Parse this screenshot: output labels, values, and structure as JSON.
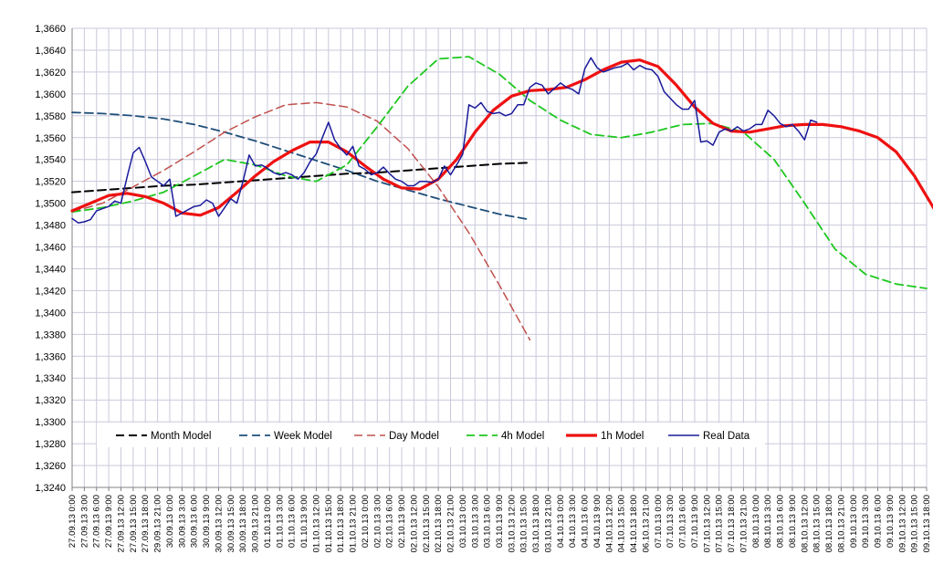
{
  "chart_data": {
    "type": "line",
    "title": "",
    "xlabel": "",
    "ylabel": "",
    "ylim": [
      1.324,
      1.366
    ],
    "y_ticks": [
      "1,3240",
      "1,3260",
      "1,3280",
      "1,3300",
      "1,3320",
      "1,3340",
      "1,3360",
      "1,3380",
      "1,3400",
      "1,3420",
      "1,3440",
      "1,3460",
      "1,3480",
      "1,3500",
      "1,3520",
      "1,3540",
      "1,3560",
      "1,3580",
      "1,3600",
      "1,3620",
      "1,3640",
      "1,3660"
    ],
    "x_ticks": [
      "27.09.13 0:00",
      "27.09.13 3:00",
      "27.09.13 6:00",
      "27.09.13 9:00",
      "27.09.13 12:00",
      "27.09.13 15:00",
      "27.09.13 18:00",
      "29.09.13 21:00",
      "30.09.13 0:00",
      "30.09.13 3:00",
      "30.09.13 6:00",
      "30.09.13 9:00",
      "30.09.13 12:00",
      "30.09.13 15:00",
      "30.09.13 18:00",
      "30.09.13 21:00",
      "01.10.13 0:00",
      "01.10.13 3:00",
      "01.10.13 6:00",
      "01.10.13 9:00",
      "01.10.13 12:00",
      "01.10.13 15:00",
      "01.10.13 18:00",
      "01.10.13 21:00",
      "02.10.13 0:00",
      "02.10.13 3:00",
      "02.10.13 6:00",
      "02.10.13 9:00",
      "02.10.13 12:00",
      "02.10.13 15:00",
      "02.10.13 18:00",
      "02.10.13 21:00",
      "03.10.13 0:00",
      "03.10.13 3:00",
      "03.10.13 6:00",
      "03.10.13 9:00",
      "03.10.13 12:00",
      "03.10.13 15:00",
      "03.10.13 18:00",
      "03.10.13 21:00",
      "04.10.13 0:00",
      "04.10.13 3:00",
      "04.10.13 6:00",
      "04.10.13 9:00",
      "04.10.13 12:00",
      "04.10.13 15:00",
      "04.10.13 18:00",
      "06.10.13 21:00",
      "07.10.13 0:00",
      "07.10.13 3:00",
      "07.10.13 6:00",
      "07.10.13 9:00",
      "07.10.13 12:00",
      "07.10.13 15:00",
      "07.10.13 18:00",
      "07.10.13 21:00",
      "08.10.13 0:00",
      "08.10.13 3:00",
      "08.10.13 6:00",
      "08.10.13 9:00",
      "08.10.13 12:00",
      "08.10.13 15:00",
      "08.10.13 18:00",
      "08.10.13 21:00",
      "09.10.13 0:00",
      "09.10.13 3:00",
      "09.10.13 6:00",
      "09.10.13 9:00",
      "09.10.13 12:00",
      "09.10.13 15:00",
      "09.10.13 18:00"
    ],
    "grid": true,
    "legend_position": "bottom",
    "series": [
      {
        "name": "Month Model",
        "color": "#000000",
        "style": "dashed-long",
        "width": 2,
        "points": [
          [
            0,
            1.351
          ],
          [
            5,
            1.3512
          ],
          [
            10,
            1.3514
          ],
          [
            15,
            1.3516
          ],
          [
            20,
            1.3517
          ],
          [
            25,
            1.3519
          ],
          [
            30,
            1.3521
          ],
          [
            35,
            1.3523
          ],
          [
            40,
            1.3525
          ],
          [
            45,
            1.3527
          ],
          [
            50,
            1.3528
          ],
          [
            55,
            1.353
          ],
          [
            60,
            1.3532
          ],
          [
            65,
            1.3534
          ],
          [
            70,
            1.3536
          ],
          [
            75,
            1.3537
          ]
        ]
      },
      {
        "name": "Week Model",
        "color": "#1f4e79",
        "style": "dashed-long",
        "width": 1.8,
        "points": [
          [
            0,
            1.3583
          ],
          [
            5,
            1.3582
          ],
          [
            10,
            1.358
          ],
          [
            15,
            1.3577
          ],
          [
            20,
            1.3572
          ],
          [
            25,
            1.3565
          ],
          [
            30,
            1.3557
          ],
          [
            35,
            1.3548
          ],
          [
            40,
            1.3539
          ],
          [
            45,
            1.353
          ],
          [
            50,
            1.352
          ],
          [
            55,
            1.3512
          ],
          [
            60,
            1.3504
          ],
          [
            65,
            1.3497
          ],
          [
            70,
            1.349
          ],
          [
            75,
            1.3485
          ]
        ]
      },
      {
        "name": "Day Model",
        "color": "#c0504d",
        "style": "dashed",
        "width": 1.5,
        "points": [
          [
            0,
            1.3492
          ],
          [
            5,
            1.35
          ],
          [
            10,
            1.3515
          ],
          [
            15,
            1.353
          ],
          [
            20,
            1.3547
          ],
          [
            25,
            1.3565
          ],
          [
            30,
            1.3579
          ],
          [
            35,
            1.359
          ],
          [
            40,
            1.3592
          ],
          [
            45,
            1.3588
          ],
          [
            50,
            1.3575
          ],
          [
            55,
            1.355
          ],
          [
            60,
            1.3515
          ],
          [
            65,
            1.3473
          ],
          [
            70,
            1.3425
          ],
          [
            75,
            1.3375
          ]
        ]
      },
      {
        "name": "4h Model",
        "color": "#1fc71f",
        "style": "dashed",
        "width": 1.8,
        "points": [
          [
            0,
            1.3492
          ],
          [
            5,
            1.3496
          ],
          [
            10,
            1.3502
          ],
          [
            15,
            1.351
          ],
          [
            20,
            1.3525
          ],
          [
            25,
            1.354
          ],
          [
            30,
            1.3535
          ],
          [
            35,
            1.3525
          ],
          [
            40,
            1.352
          ],
          [
            45,
            1.3535
          ],
          [
            50,
            1.357
          ],
          [
            55,
            1.3607
          ],
          [
            60,
            1.3632
          ],
          [
            65,
            1.3634
          ],
          [
            70,
            1.3618
          ],
          [
            75,
            1.3594
          ],
          [
            80,
            1.3576
          ],
          [
            85,
            1.3563
          ],
          [
            90,
            1.356
          ],
          [
            95,
            1.3565
          ],
          [
            100,
            1.3572
          ],
          [
            105,
            1.3573
          ],
          [
            110,
            1.3565
          ],
          [
            115,
            1.354
          ],
          [
            120,
            1.35
          ],
          [
            125,
            1.3458
          ],
          [
            130,
            1.3435
          ],
          [
            135,
            1.3426
          ],
          [
            140,
            1.3422
          ]
        ]
      },
      {
        "name": "1h Model",
        "color": "#ee1111",
        "style": "solid",
        "width": 3.2,
        "points": [
          [
            0,
            1.3493
          ],
          [
            3,
            1.35
          ],
          [
            6,
            1.3507
          ],
          [
            9,
            1.3509
          ],
          [
            12,
            1.3506
          ],
          [
            15,
            1.35
          ],
          [
            18,
            1.3491
          ],
          [
            21,
            1.3489
          ],
          [
            24,
            1.3496
          ],
          [
            27,
            1.351
          ],
          [
            30,
            1.3525
          ],
          [
            33,
            1.3538
          ],
          [
            36,
            1.3548
          ],
          [
            39,
            1.3556
          ],
          [
            42,
            1.3556
          ],
          [
            45,
            1.3547
          ],
          [
            48,
            1.3534
          ],
          [
            51,
            1.3522
          ],
          [
            54,
            1.3514
          ],
          [
            57,
            1.3513
          ],
          [
            60,
            1.3522
          ],
          [
            63,
            1.354
          ],
          [
            66,
            1.3565
          ],
          [
            69,
            1.3585
          ],
          [
            72,
            1.3598
          ],
          [
            75,
            1.3603
          ],
          [
            78,
            1.3604
          ],
          [
            81,
            1.3606
          ],
          [
            84,
            1.3613
          ],
          [
            87,
            1.3622
          ],
          [
            90,
            1.3629
          ],
          [
            93,
            1.3631
          ],
          [
            96,
            1.3625
          ],
          [
            99,
            1.3608
          ],
          [
            102,
            1.3588
          ],
          [
            105,
            1.3573
          ],
          [
            108,
            1.3566
          ],
          [
            111,
            1.3565
          ],
          [
            114,
            1.3568
          ],
          [
            117,
            1.3571
          ],
          [
            120,
            1.3572
          ],
          [
            123,
            1.3572
          ],
          [
            126,
            1.357
          ],
          [
            129,
            1.3566
          ],
          [
            132,
            1.356
          ],
          [
            135,
            1.3547
          ],
          [
            138,
            1.3525
          ],
          [
            141,
            1.3497
          ],
          [
            144,
            1.3469
          ],
          [
            147,
            1.3456
          ],
          [
            150,
            1.3447
          ],
          [
            152,
            1.3445
          ]
        ]
      },
      {
        "name": "Real Data",
        "color": "#1a1a9a",
        "style": "solid",
        "width": 1.5,
        "points": [
          [
            0,
            1.3486
          ],
          [
            1,
            1.3482
          ],
          [
            2,
            1.3483
          ],
          [
            3,
            1.3485
          ],
          [
            4,
            1.3493
          ],
          [
            5,
            1.3495
          ],
          [
            6,
            1.3497
          ],
          [
            7,
            1.3502
          ],
          [
            8,
            1.35
          ],
          [
            9,
            1.3524
          ],
          [
            10,
            1.3546
          ],
          [
            11,
            1.3551
          ],
          [
            12,
            1.3538
          ],
          [
            13,
            1.3524
          ],
          [
            14,
            1.352
          ],
          [
            15,
            1.3516
          ],
          [
            16,
            1.3522
          ],
          [
            17,
            1.3488
          ],
          [
            18,
            1.3491
          ],
          [
            19,
            1.3494
          ],
          [
            20,
            1.3497
          ],
          [
            21,
            1.3498
          ],
          [
            22,
            1.3503
          ],
          [
            23,
            1.35
          ],
          [
            24,
            1.3488
          ],
          [
            25,
            1.3496
          ],
          [
            26,
            1.3504
          ],
          [
            27,
            1.35
          ],
          [
            28,
            1.352
          ],
          [
            29,
            1.3544
          ],
          [
            30,
            1.3534
          ],
          [
            31,
            1.3535
          ],
          [
            32,
            1.3532
          ],
          [
            33,
            1.3528
          ],
          [
            34,
            1.3526
          ],
          [
            35,
            1.3528
          ],
          [
            36,
            1.3526
          ],
          [
            37,
            1.3522
          ],
          [
            38,
            1.3528
          ],
          [
            39,
            1.3538
          ],
          [
            40,
            1.3545
          ],
          [
            41,
            1.356
          ],
          [
            42,
            1.3574
          ],
          [
            43,
            1.3558
          ],
          [
            44,
            1.355
          ],
          [
            45,
            1.3544
          ],
          [
            46,
            1.3552
          ],
          [
            47,
            1.3534
          ],
          [
            48,
            1.3531
          ],
          [
            49,
            1.3526
          ],
          [
            50,
            1.3528
          ],
          [
            51,
            1.3533
          ],
          [
            52,
            1.3527
          ],
          [
            53,
            1.3522
          ],
          [
            54,
            1.352
          ],
          [
            55,
            1.3516
          ],
          [
            56,
            1.3516
          ],
          [
            57,
            1.352
          ],
          [
            58,
            1.352
          ],
          [
            59,
            1.3519
          ],
          [
            60,
            1.3522
          ],
          [
            61,
            1.3534
          ],
          [
            62,
            1.3526
          ],
          [
            63,
            1.3535
          ],
          [
            64,
            1.3545
          ],
          [
            65,
            1.359
          ],
          [
            66,
            1.3587
          ],
          [
            67,
            1.3592
          ],
          [
            68,
            1.3584
          ],
          [
            69,
            1.3582
          ],
          [
            70,
            1.3583
          ],
          [
            71,
            1.358
          ],
          [
            72,
            1.3582
          ],
          [
            73,
            1.359
          ],
          [
            74,
            1.359
          ],
          [
            75,
            1.3606
          ],
          [
            76,
            1.361
          ],
          [
            77,
            1.3608
          ],
          [
            78,
            1.36
          ],
          [
            79,
            1.3605
          ],
          [
            80,
            1.361
          ],
          [
            81,
            1.3606
          ],
          [
            82,
            1.3604
          ],
          [
            83,
            1.36
          ],
          [
            84,
            1.3623
          ],
          [
            85,
            1.3633
          ],
          [
            86,
            1.3624
          ],
          [
            87,
            1.362
          ],
          [
            88,
            1.3622
          ],
          [
            89,
            1.3624
          ],
          [
            90,
            1.3625
          ],
          [
            91,
            1.3628
          ],
          [
            92,
            1.3622
          ],
          [
            93,
            1.3626
          ],
          [
            94,
            1.3623
          ],
          [
            95,
            1.3622
          ],
          [
            96,
            1.3616
          ],
          [
            97,
            1.3602
          ],
          [
            98,
            1.3596
          ],
          [
            99,
            1.359
          ],
          [
            100,
            1.3586
          ],
          [
            101,
            1.3586
          ],
          [
            102,
            1.3594
          ],
          [
            103,
            1.3556
          ],
          [
            104,
            1.3557
          ],
          [
            105,
            1.3553
          ],
          [
            106,
            1.3565
          ],
          [
            107,
            1.3568
          ],
          [
            108,
            1.3566
          ],
          [
            109,
            1.357
          ],
          [
            110,
            1.3566
          ],
          [
            111,
            1.3568
          ],
          [
            112,
            1.3572
          ],
          [
            113,
            1.3572
          ],
          [
            114,
            1.3585
          ],
          [
            115,
            1.358
          ],
          [
            116,
            1.3573
          ],
          [
            117,
            1.357
          ],
          [
            118,
            1.3572
          ],
          [
            119,
            1.3566
          ],
          [
            120,
            1.3558
          ],
          [
            121,
            1.3576
          ],
          [
            122,
            1.3574
          ]
        ]
      }
    ]
  }
}
